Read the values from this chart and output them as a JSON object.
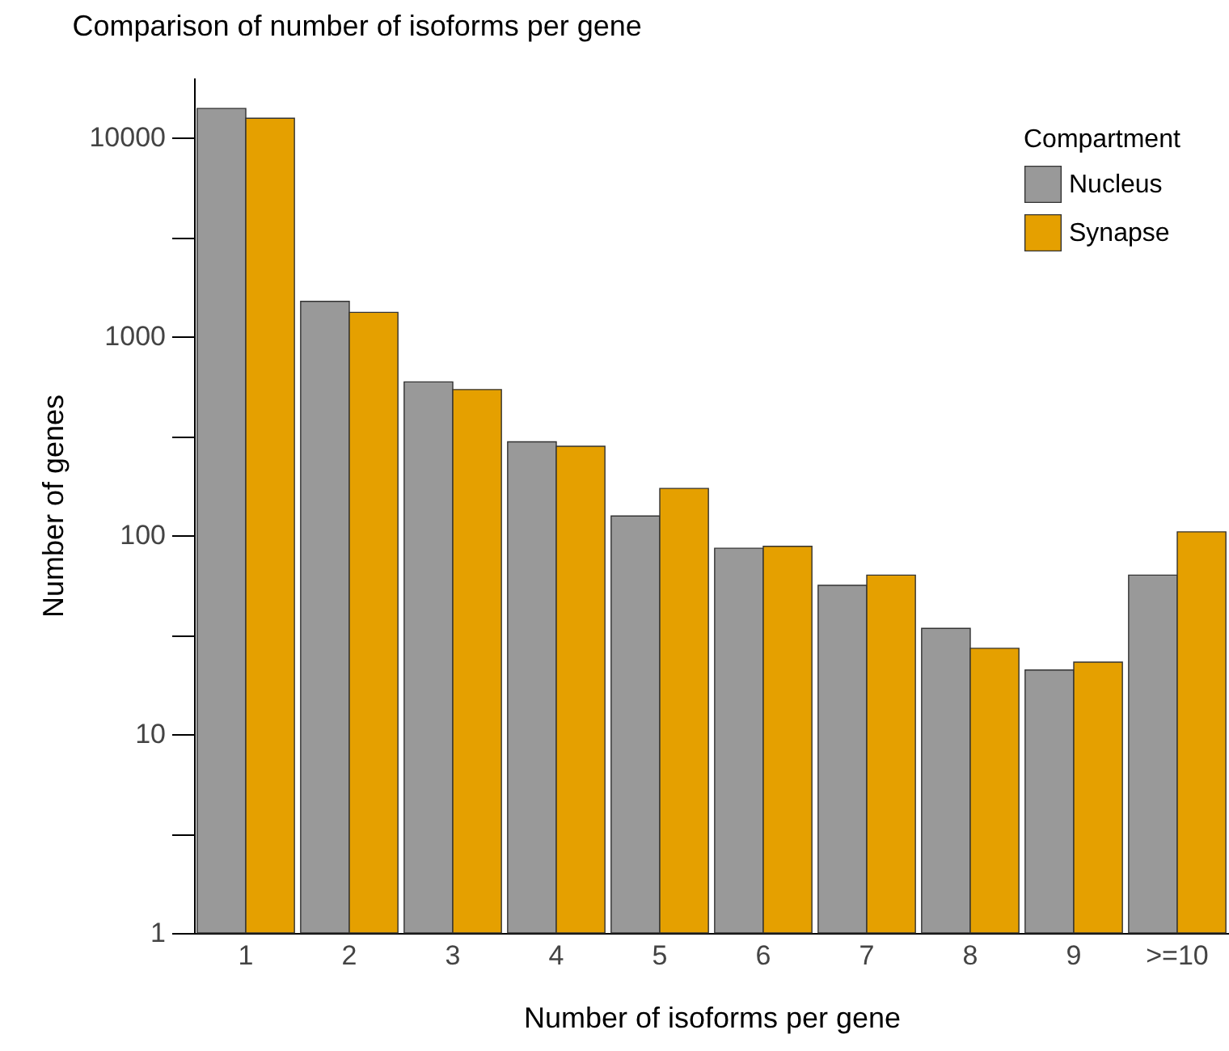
{
  "chart_data": {
    "type": "bar",
    "title": "Comparison of number of isoforms per gene",
    "xlabel": "Number of isoforms per gene",
    "ylabel": "Number of genes",
    "legend_title": "Compartment",
    "categories": [
      "1",
      "2",
      "3",
      "4",
      "5",
      "6",
      "7",
      "8",
      "9",
      ">=10"
    ],
    "series": [
      {
        "name": "Nucleus",
        "color": "#999999",
        "values": [
          14000,
          1500,
          590,
          295,
          125,
          86,
          56,
          34,
          21,
          63
        ]
      },
      {
        "name": "Synapse",
        "color": "#e5a000",
        "values": [
          12500,
          1320,
          540,
          280,
          172,
          88,
          63,
          27,
          23,
          104
        ]
      }
    ],
    "log": true,
    "ylim": [
      1,
      20000
    ],
    "yticks": [
      1,
      {
        "value": 3.162,
        "label": null
      },
      10,
      {
        "value": 31.62,
        "label": null
      },
      100,
      {
        "value": 316.2,
        "label": null
      },
      1000,
      {
        "value": 3162,
        "label": null
      },
      10000
    ],
    "grid": false,
    "legend": "top right"
  }
}
